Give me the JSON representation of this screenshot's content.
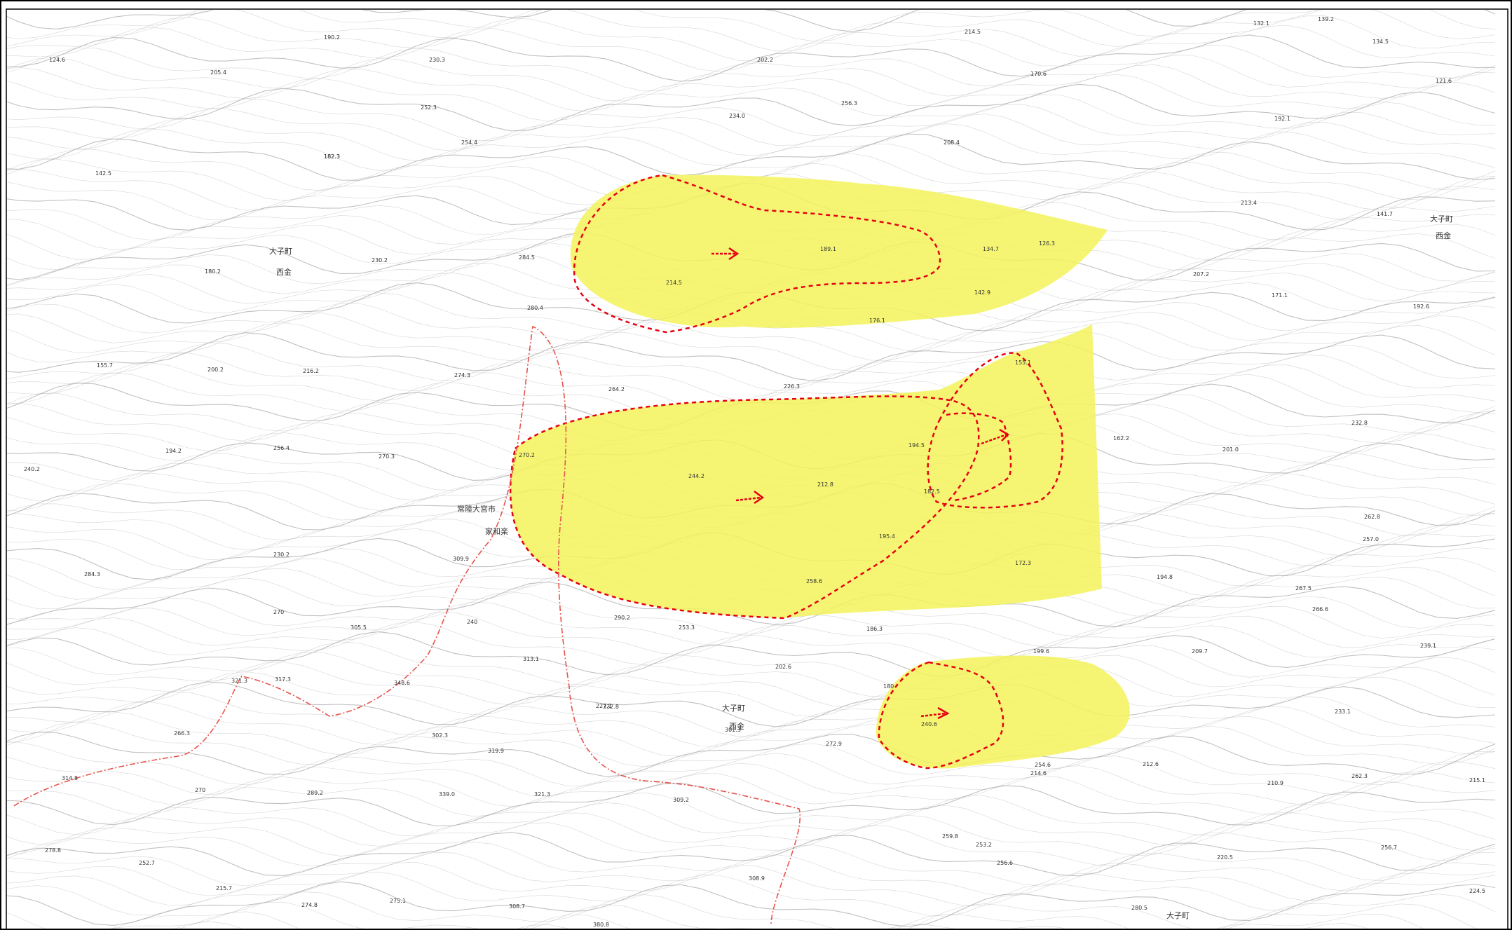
{
  "map": {
    "colors": {
      "background": "#ffffff",
      "contour": "#a6a6a6",
      "hazard_fill": "#f3f35a",
      "hazard_outline": "#e60012",
      "arrow": "#e60012",
      "frame": "#000000"
    },
    "place_labels": [
      "大子町",
      "西金",
      "常陸大宮市",
      "家和楽"
    ],
    "elevation_labels": [
      "124.6",
      "190.2",
      "205.4",
      "230.3",
      "182.3",
      "252.3",
      "254.4",
      "202.2",
      "214.5",
      "170.6",
      "256.3",
      "234.0",
      "208.4",
      "132.1",
      "139.2",
      "134.5",
      "121.6",
      "192.1",
      "142.5",
      "182.3",
      "180.2",
      "230.2",
      "284.5",
      "280.4",
      "214.5",
      "189.1",
      "134.7",
      "126.3",
      "142.9",
      "176.1",
      "213.4",
      "141.7",
      "207.2",
      "171.1",
      "192.6",
      "155.7",
      "200.2",
      "216.2",
      "274.3",
      "264.2",
      "226.3",
      "155.1",
      "194.2",
      "256.4",
      "270.3",
      "270.2",
      "244.2",
      "212.8",
      "194.5",
      "182.5",
      "162.2",
      "201.0",
      "232.8",
      "240.2",
      "309.9",
      "230.2",
      "195.4",
      "172.3",
      "262.8",
      "257.0",
      "284.3",
      "270",
      "290.2",
      "186.3",
      "194.8",
      "267.5",
      "266.6",
      "305.5",
      "253.3",
      "202.6",
      "258.6",
      "199.6",
      "239.1",
      "313.1",
      "227.1",
      "180",
      "209.7",
      "321.3",
      "317.3",
      "348.6",
      "240.6",
      "233.1",
      "266.3",
      "302.3",
      "332.8",
      "301.3",
      "272.9",
      "254.6",
      "319.9",
      "212.6",
      "314.8",
      "270",
      "289.2",
      "339.0",
      "321.3",
      "309.2",
      "214.6",
      "210.9",
      "262.3",
      "215.1",
      "278.8",
      "252.7",
      "259.8",
      "253.2",
      "256.6",
      "220.5",
      "256.7",
      "215.7",
      "274.8",
      "275.1",
      "308.7",
      "308.9",
      "280.5",
      "224.5",
      "380.8",
      "240"
    ]
  }
}
